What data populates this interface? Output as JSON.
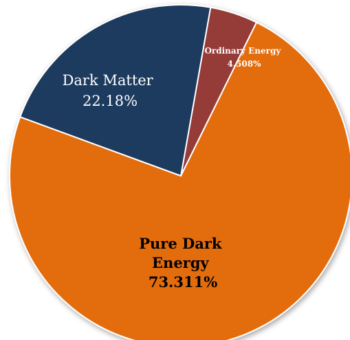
{
  "chart_data": {
    "type": "pie",
    "title": "",
    "slices": [
      {
        "label_lines": [
          "Ordinary Energy"
        ],
        "value_text": "4.508%",
        "value": 4.508,
        "color": "#953b39"
      },
      {
        "label_lines": [
          "Pure Dark",
          "Energy"
        ],
        "value_text": "73.311%",
        "value": 73.311,
        "color": "#e36c0a"
      },
      {
        "label_lines": [
          "Dark Matter"
        ],
        "value_text": "22.18%",
        "value": 22.18,
        "color": "#1f3a5f"
      }
    ],
    "legend": "none"
  }
}
